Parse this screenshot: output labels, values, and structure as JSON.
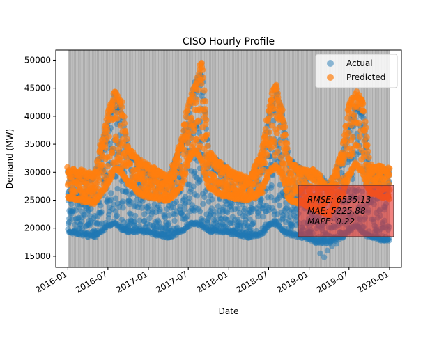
{
  "chart_data": {
    "type": "scatter",
    "title": "CISO Hourly Profile",
    "xlabel": "Date",
    "ylabel": "Demand (MW)",
    "x_range": [
      "2015-11-07",
      "2020-02-24"
    ],
    "ylim": [
      13000,
      51800
    ],
    "x_ticks": [
      "2016-01",
      "2016-07",
      "2017-01",
      "2017-07",
      "2018-01",
      "2018-07",
      "2019-01",
      "2019-07",
      "2020-01"
    ],
    "y_ticks": [
      15000,
      20000,
      25000,
      30000,
      35000,
      40000,
      45000,
      50000
    ],
    "data_extent": [
      "2016-01-01",
      "2019-12-31"
    ],
    "grid": false,
    "legend_position": "upper right",
    "series": [
      {
        "name": "Actual",
        "color": "#1f77b4",
        "marker": "circle",
        "alpha": 0.5,
        "envelope": {
          "dates": [
            "2016-01",
            "2016-03",
            "2016-05",
            "2016-07",
            "2016-08",
            "2016-09",
            "2016-10",
            "2016-12",
            "2017-02",
            "2017-04",
            "2017-06",
            "2017-07",
            "2017-08",
            "2017-09",
            "2017-10",
            "2017-12",
            "2018-02",
            "2018-04",
            "2018-06",
            "2018-07",
            "2018-08",
            "2018-09",
            "2018-10",
            "2018-12",
            "2019-02",
            "2019-04",
            "2019-06",
            "2019-07",
            "2019-08",
            "2019-09",
            "2019-10",
            "2019-12"
          ],
          "upper": [
            30000,
            29000,
            29000,
            39000,
            44000,
            41000,
            33000,
            31500,
            30000,
            28500,
            35000,
            40500,
            46000,
            47500,
            33000,
            31000,
            29000,
            28000,
            33000,
            39000,
            45000,
            40000,
            32000,
            30000,
            29500,
            27500,
            32000,
            38000,
            42000,
            40500,
            30000,
            30000
          ],
          "lower": [
            19500,
            19000,
            18500,
            20500,
            21000,
            20000,
            19500,
            19500,
            19000,
            18500,
            19500,
            20500,
            21000,
            20500,
            19500,
            19500,
            19000,
            18500,
            19000,
            20500,
            21000,
            19500,
            19000,
            18500,
            17500,
            17500,
            18500,
            19500,
            20500,
            19500,
            18500,
            18000
          ]
        },
        "outlier_lows": [
          {
            "x": "2019-02-20",
            "y": 15500
          },
          {
            "x": "2019-03-10",
            "y": 14800
          },
          {
            "x": "2019-03-25",
            "y": 16000
          },
          {
            "x": "2019-04-15",
            "y": 16800
          },
          {
            "x": "2019-05-05",
            "y": 17200
          }
        ]
      },
      {
        "name": "Predicted",
        "color": "#ff7f0e",
        "marker": "circle",
        "alpha": 0.7,
        "envelope": {
          "dates": [
            "2016-01",
            "2016-03",
            "2016-05",
            "2016-07",
            "2016-08",
            "2016-09",
            "2016-10",
            "2016-12",
            "2017-02",
            "2017-04",
            "2017-06",
            "2017-07",
            "2017-08",
            "2017-09",
            "2017-10",
            "2017-12",
            "2018-02",
            "2018-04",
            "2018-06",
            "2018-07",
            "2018-08",
            "2018-09",
            "2018-10",
            "2018-12",
            "2019-02",
            "2019-04",
            "2019-06",
            "2019-07",
            "2019-08",
            "2019-09",
            "2019-10",
            "2019-12"
          ],
          "upper": [
            30500,
            30000,
            29500,
            40000,
            44500,
            42000,
            34000,
            31500,
            30500,
            28500,
            35500,
            42000,
            45500,
            49800,
            33500,
            31000,
            29500,
            28500,
            33500,
            41000,
            46000,
            40500,
            32000,
            30000,
            30000,
            27000,
            33500,
            42000,
            44000,
            43000,
            31000,
            30500
          ],
          "lower": [
            25500,
            25000,
            24500,
            28000,
            30500,
            30000,
            28000,
            26000,
            25500,
            25000,
            27500,
            32000,
            34000,
            32000,
            27500,
            26000,
            25500,
            25000,
            26500,
            30000,
            31000,
            29500,
            25000,
            24500,
            23500,
            22500,
            26000,
            29500,
            31500,
            30000,
            26500,
            25500
          ]
        }
      }
    ],
    "annotation": {
      "lines": [
        "RMSE: 6535.13",
        "MAE: 5225.88",
        "MAPE: 0.22"
      ],
      "box_color": "#e8302b",
      "box_alpha": 0.6
    },
    "vertical_bands": {
      "color": "#808080",
      "count": 209,
      "interval": "weekly"
    }
  }
}
